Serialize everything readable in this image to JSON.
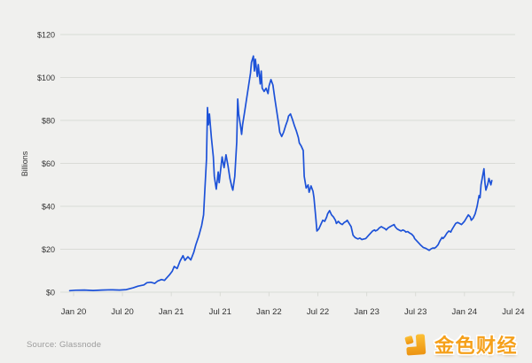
{
  "meta": {
    "source_note": "Source: Glassnode"
  },
  "branding": {
    "logo_text": "金色财经",
    "logo_color": "#f5a01a",
    "icon_name": "jinse-logo-icon"
  },
  "chart_data": {
    "type": "line",
    "title": "",
    "xlabel": "",
    "ylabel": "Billions",
    "ylim": [
      0,
      120
    ],
    "xlim": [
      2019.95,
      2024.55
    ],
    "grid": "horizontal-only",
    "legend": "none",
    "background": "#f0f0ee",
    "grid_color": "#d9dbd6",
    "axis_text_color": "#323232",
    "series_color": "#1d52d8",
    "y_ticks": [
      {
        "v": 0,
        "label": "$0"
      },
      {
        "v": 20,
        "label": "$20"
      },
      {
        "v": 40,
        "label": "$40"
      },
      {
        "v": 60,
        "label": "$60"
      },
      {
        "v": 80,
        "label": "$80"
      },
      {
        "v": 100,
        "label": "$100"
      },
      {
        "v": 120,
        "label": "$120"
      }
    ],
    "x_ticks": [
      {
        "t": 2020.0,
        "label": "Jan 20"
      },
      {
        "t": 2020.5,
        "label": "Jul 20"
      },
      {
        "t": 2021.0,
        "label": "Jan 21"
      },
      {
        "t": 2021.5,
        "label": "Jul 21"
      },
      {
        "t": 2022.0,
        "label": "Jan 22"
      },
      {
        "t": 2022.5,
        "label": "Jul 22"
      },
      {
        "t": 2023.0,
        "label": "Jan 23"
      },
      {
        "t": 2023.5,
        "label": "Jul 23"
      },
      {
        "t": 2024.0,
        "label": "Jan 24"
      },
      {
        "t": 2024.5,
        "label": "Jul 24"
      }
    ],
    "series": [
      {
        "name": "value-billions-usd",
        "points": [
          [
            2019.96,
            0.7
          ],
          [
            2020.02,
            0.9
          ],
          [
            2020.11,
            1.0
          ],
          [
            2020.2,
            0.8
          ],
          [
            2020.29,
            1.0
          ],
          [
            2020.38,
            1.1
          ],
          [
            2020.47,
            1.0
          ],
          [
            2020.54,
            1.2
          ],
          [
            2020.61,
            2.0
          ],
          [
            2020.66,
            2.8
          ],
          [
            2020.72,
            3.4
          ],
          [
            2020.75,
            4.4
          ],
          [
            2020.79,
            4.6
          ],
          [
            2020.83,
            4.1
          ],
          [
            2020.86,
            5.2
          ],
          [
            2020.9,
            5.9
          ],
          [
            2020.93,
            5.5
          ],
          [
            2020.95,
            6.5
          ],
          [
            2020.98,
            8.0
          ],
          [
            2021.01,
            9.8
          ],
          [
            2021.03,
            12.0
          ],
          [
            2021.06,
            11.0
          ],
          [
            2021.09,
            14.5
          ],
          [
            2021.12,
            17.0
          ],
          [
            2021.14,
            14.8
          ],
          [
            2021.17,
            16.5
          ],
          [
            2021.2,
            15.0
          ],
          [
            2021.23,
            18.5
          ],
          [
            2021.25,
            22.0
          ],
          [
            2021.28,
            26.0
          ],
          [
            2021.31,
            31.0
          ],
          [
            2021.33,
            36.0
          ],
          [
            2021.34,
            45.0
          ],
          [
            2021.36,
            62.0
          ],
          [
            2021.37,
            86.0
          ],
          [
            2021.38,
            78.0
          ],
          [
            2021.39,
            83.0
          ],
          [
            2021.41,
            72.0
          ],
          [
            2021.43,
            63.0
          ],
          [
            2021.44,
            54.0
          ],
          [
            2021.46,
            48.0
          ],
          [
            2021.48,
            56.0
          ],
          [
            2021.49,
            51.0
          ],
          [
            2021.51,
            59.0
          ],
          [
            2021.52,
            63.0
          ],
          [
            2021.54,
            58.0
          ],
          [
            2021.56,
            64.0
          ],
          [
            2021.58,
            59.0
          ],
          [
            2021.6,
            53.0
          ],
          [
            2021.62,
            49.0
          ],
          [
            2021.63,
            47.5
          ],
          [
            2021.65,
            54.0
          ],
          [
            2021.67,
            70.0
          ],
          [
            2021.68,
            90.0
          ],
          [
            2021.69,
            83.0
          ],
          [
            2021.71,
            77.0
          ],
          [
            2021.72,
            73.5
          ],
          [
            2021.73,
            78.0
          ],
          [
            2021.75,
            84.0
          ],
          [
            2021.77,
            90.0
          ],
          [
            2021.79,
            96.0
          ],
          [
            2021.81,
            102.0
          ],
          [
            2021.82,
            107.0
          ],
          [
            2021.84,
            110.0
          ],
          [
            2021.85,
            103.0
          ],
          [
            2021.86,
            108.5
          ],
          [
            2021.88,
            100.5
          ],
          [
            2021.89,
            106.0
          ],
          [
            2021.91,
            97.0
          ],
          [
            2021.92,
            103.0
          ],
          [
            2021.93,
            95.0
          ],
          [
            2021.95,
            93.5
          ],
          [
            2021.97,
            95.0
          ],
          [
            2021.99,
            92.5
          ],
          [
            2022.0,
            96.0
          ],
          [
            2022.02,
            99.0
          ],
          [
            2022.04,
            96.5
          ],
          [
            2022.06,
            90.0
          ],
          [
            2022.08,
            84.0
          ],
          [
            2022.1,
            78.0
          ],
          [
            2022.11,
            74.5
          ],
          [
            2022.13,
            72.5
          ],
          [
            2022.15,
            74.5
          ],
          [
            2022.17,
            77.5
          ],
          [
            2022.19,
            80.0
          ],
          [
            2022.2,
            82.0
          ],
          [
            2022.22,
            83.0
          ],
          [
            2022.24,
            80.5
          ],
          [
            2022.26,
            77.5
          ],
          [
            2022.28,
            75.0
          ],
          [
            2022.3,
            72.0
          ],
          [
            2022.31,
            69.5
          ],
          [
            2022.33,
            68.0
          ],
          [
            2022.35,
            66.0
          ],
          [
            2022.36,
            54.0
          ],
          [
            2022.38,
            48.5
          ],
          [
            2022.4,
            50.0
          ],
          [
            2022.41,
            46.5
          ],
          [
            2022.43,
            49.5
          ],
          [
            2022.45,
            47.0
          ],
          [
            2022.46,
            44.0
          ],
          [
            2022.48,
            34.0
          ],
          [
            2022.49,
            28.5
          ],
          [
            2022.51,
            29.5
          ],
          [
            2022.53,
            31.5
          ],
          [
            2022.55,
            33.5
          ],
          [
            2022.57,
            33.0
          ],
          [
            2022.59,
            35.0
          ],
          [
            2022.6,
            36.5
          ],
          [
            2022.62,
            38.0
          ],
          [
            2022.64,
            36.0
          ],
          [
            2022.66,
            35.0
          ],
          [
            2022.68,
            33.5
          ],
          [
            2022.69,
            32.0
          ],
          [
            2022.71,
            33.0
          ],
          [
            2022.73,
            32.0
          ],
          [
            2022.75,
            31.5
          ],
          [
            2022.77,
            32.5
          ],
          [
            2022.79,
            33.0
          ],
          [
            2022.8,
            33.5
          ],
          [
            2022.82,
            32.0
          ],
          [
            2022.84,
            30.5
          ],
          [
            2022.86,
            26.5
          ],
          [
            2022.88,
            25.5
          ],
          [
            2022.9,
            25.0
          ],
          [
            2022.91,
            24.8
          ],
          [
            2022.93,
            25.2
          ],
          [
            2022.95,
            24.5
          ],
          [
            2022.97,
            24.8
          ],
          [
            2022.99,
            25.0
          ],
          [
            2023.0,
            25.5
          ],
          [
            2023.02,
            26.5
          ],
          [
            2023.04,
            27.5
          ],
          [
            2023.06,
            28.5
          ],
          [
            2023.08,
            29.0
          ],
          [
            2023.09,
            28.5
          ],
          [
            2023.11,
            29.0
          ],
          [
            2023.13,
            30.0
          ],
          [
            2023.15,
            30.5
          ],
          [
            2023.17,
            30.0
          ],
          [
            2023.19,
            29.5
          ],
          [
            2023.2,
            29.0
          ],
          [
            2023.22,
            30.0
          ],
          [
            2023.24,
            30.5
          ],
          [
            2023.26,
            31.0
          ],
          [
            2023.28,
            31.5
          ],
          [
            2023.29,
            30.5
          ],
          [
            2023.31,
            29.5
          ],
          [
            2023.33,
            29.0
          ],
          [
            2023.35,
            28.5
          ],
          [
            2023.37,
            29.0
          ],
          [
            2023.39,
            28.5
          ],
          [
            2023.4,
            28.0
          ],
          [
            2023.42,
            28.2
          ],
          [
            2023.44,
            27.5
          ],
          [
            2023.46,
            27.0
          ],
          [
            2023.48,
            26.0
          ],
          [
            2023.49,
            25.0
          ],
          [
            2023.51,
            24.0
          ],
          [
            2023.53,
            23.0
          ],
          [
            2023.55,
            22.0
          ],
          [
            2023.57,
            21.2
          ],
          [
            2023.58,
            20.8
          ],
          [
            2023.6,
            20.5
          ],
          [
            2023.62,
            20.0
          ],
          [
            2023.64,
            19.5
          ],
          [
            2023.66,
            20.2
          ],
          [
            2023.68,
            20.6
          ],
          [
            2023.69,
            20.4
          ],
          [
            2023.71,
            21.0
          ],
          [
            2023.73,
            22.0
          ],
          [
            2023.75,
            24.0
          ],
          [
            2023.77,
            25.5
          ],
          [
            2023.78,
            25.0
          ],
          [
            2023.8,
            26.0
          ],
          [
            2023.82,
            27.5
          ],
          [
            2023.84,
            28.5
          ],
          [
            2023.86,
            28.0
          ],
          [
            2023.87,
            29.0
          ],
          [
            2023.89,
            30.5
          ],
          [
            2023.91,
            32.0
          ],
          [
            2023.93,
            32.5
          ],
          [
            2023.95,
            32.0
          ],
          [
            2023.97,
            31.5
          ],
          [
            2023.98,
            32.0
          ],
          [
            2024.0,
            33.0
          ],
          [
            2024.02,
            34.5
          ],
          [
            2024.04,
            36.0
          ],
          [
            2024.06,
            35.0
          ],
          [
            2024.07,
            33.5
          ],
          [
            2024.09,
            34.5
          ],
          [
            2024.11,
            36.5
          ],
          [
            2024.13,
            40.0
          ],
          [
            2024.15,
            45.0
          ],
          [
            2024.16,
            44.0
          ],
          [
            2024.17,
            50.0
          ],
          [
            2024.19,
            55.0
          ],
          [
            2024.2,
            57.5
          ],
          [
            2024.21,
            51.0
          ],
          [
            2024.22,
            47.5
          ],
          [
            2024.24,
            50.5
          ],
          [
            2024.25,
            53.0
          ],
          [
            2024.27,
            50.0
          ],
          [
            2024.28,
            52.0
          ]
        ]
      }
    ]
  }
}
